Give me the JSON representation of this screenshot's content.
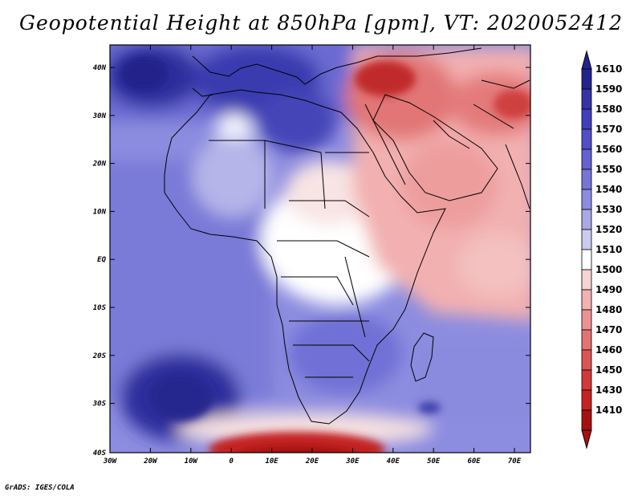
{
  "title": "Geopotential Height at 850hPa [gpm], VT: 2020052412",
  "footer": "GrADS: IGES/COLA",
  "lat_labels": [
    "40N",
    "30N",
    "20N",
    "10N",
    "EQ",
    "10S",
    "20S",
    "30S",
    "40S"
  ],
  "lon_labels": [
    "30W",
    "20W",
    "10W",
    "0",
    "10E",
    "20E",
    "30E",
    "40E",
    "50E",
    "60E",
    "70E"
  ],
  "colorbar": {
    "levels": [
      "1610",
      "1590",
      "1580",
      "1570",
      "1560",
      "1550",
      "1540",
      "1530",
      "1520",
      "1510",
      "1500",
      "1490",
      "1480",
      "1470",
      "1460",
      "1450",
      "1430",
      "1410"
    ],
    "colors": [
      "#23238f",
      "#3434a8",
      "#4040bf",
      "#5050c8",
      "#6262d0",
      "#7575d8",
      "#8c8ce0",
      "#a9a9e8",
      "#cbcbf0",
      "#ffffff",
      "#f7d3d3",
      "#f2b2b2",
      "#eb9393",
      "#e47272",
      "#dd5454",
      "#d43838",
      "#c62222",
      "#a81010"
    ]
  }
}
